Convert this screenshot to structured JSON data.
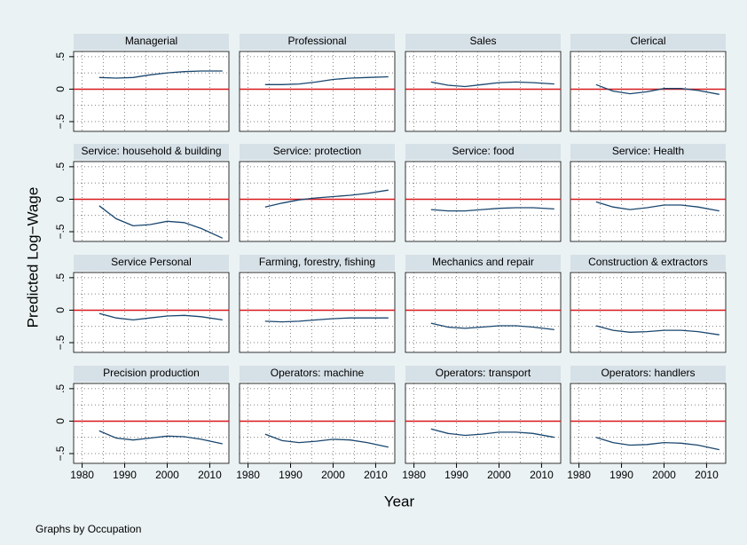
{
  "chart_data": {
    "type": "line",
    "xlabel": "Year",
    "ylabel": "Predicted Log−Wage",
    "note": "Graphs by Occupation",
    "x": [
      1984,
      1988,
      1992,
      1996,
      2000,
      2004,
      2008,
      2013
    ],
    "xlim": [
      1978,
      2014.5
    ],
    "xticks": [
      1980,
      1990,
      2000,
      2010
    ],
    "ylim": [
      -0.65,
      0.58
    ],
    "yticks": [
      {
        "value": 0.5,
        "label": ".5"
      },
      0,
      {
        "value": -0.5,
        "label": "−.5"
      }
    ],
    "xgrid": [
      1980,
      1985,
      1990,
      1995,
      2000,
      2005,
      2010
    ],
    "ygrid": [
      -0.5,
      -0.25,
      0.25,
      0.5
    ],
    "ref_line": 0,
    "ref_color": "#d7191c",
    "color": "#1a476f",
    "panels": [
      {
        "title": "Managerial",
        "values": [
          0.18,
          0.17,
          0.18,
          0.22,
          0.25,
          0.27,
          0.28,
          0.28
        ]
      },
      {
        "title": "Professional",
        "values": [
          0.07,
          0.07,
          0.08,
          0.11,
          0.15,
          0.17,
          0.18,
          0.19
        ]
      },
      {
        "title": "Sales",
        "values": [
          0.11,
          0.06,
          0.04,
          0.07,
          0.1,
          0.11,
          0.1,
          0.08
        ]
      },
      {
        "title": "Clerical",
        "values": [
          0.07,
          -0.03,
          -0.07,
          -0.04,
          0.01,
          0.01,
          -0.02,
          -0.08
        ]
      },
      {
        "title": "Service: household & building",
        "values": [
          -0.1,
          -0.3,
          -0.41,
          -0.39,
          -0.34,
          -0.36,
          -0.45,
          -0.6
        ]
      },
      {
        "title": "Service: protection",
        "values": [
          -0.12,
          -0.06,
          -0.01,
          0.02,
          0.04,
          0.06,
          0.09,
          0.14
        ]
      },
      {
        "title": "Service: food",
        "values": [
          -0.16,
          -0.18,
          -0.18,
          -0.16,
          -0.14,
          -0.13,
          -0.13,
          -0.15
        ]
      },
      {
        "title": "Service: Health",
        "values": [
          -0.04,
          -0.12,
          -0.16,
          -0.13,
          -0.09,
          -0.09,
          -0.12,
          -0.18
        ]
      },
      {
        "title": "Service Personal",
        "values": [
          -0.05,
          -0.12,
          -0.15,
          -0.12,
          -0.09,
          -0.08,
          -0.1,
          -0.15
        ]
      },
      {
        "title": "Farming, forestry, fishing",
        "values": [
          -0.17,
          -0.18,
          -0.17,
          -0.15,
          -0.13,
          -0.12,
          -0.12,
          -0.12
        ]
      },
      {
        "title": "Mechanics and repair",
        "values": [
          -0.2,
          -0.26,
          -0.28,
          -0.26,
          -0.24,
          -0.24,
          -0.26,
          -0.3
        ]
      },
      {
        "title": "Construction & extractors",
        "values": [
          -0.24,
          -0.31,
          -0.34,
          -0.33,
          -0.31,
          -0.31,
          -0.33,
          -0.38
        ]
      },
      {
        "title": "Precision production",
        "values": [
          -0.15,
          -0.26,
          -0.29,
          -0.26,
          -0.23,
          -0.24,
          -0.28,
          -0.35
        ]
      },
      {
        "title": "Operators: machine",
        "values": [
          -0.2,
          -0.3,
          -0.33,
          -0.31,
          -0.28,
          -0.29,
          -0.33,
          -0.4
        ]
      },
      {
        "title": "Operators: transport",
        "values": [
          -0.12,
          -0.19,
          -0.22,
          -0.2,
          -0.17,
          -0.17,
          -0.19,
          -0.25
        ]
      },
      {
        "title": "Operators: handlers",
        "values": [
          -0.25,
          -0.33,
          -0.37,
          -0.36,
          -0.33,
          -0.34,
          -0.37,
          -0.44
        ]
      }
    ]
  }
}
